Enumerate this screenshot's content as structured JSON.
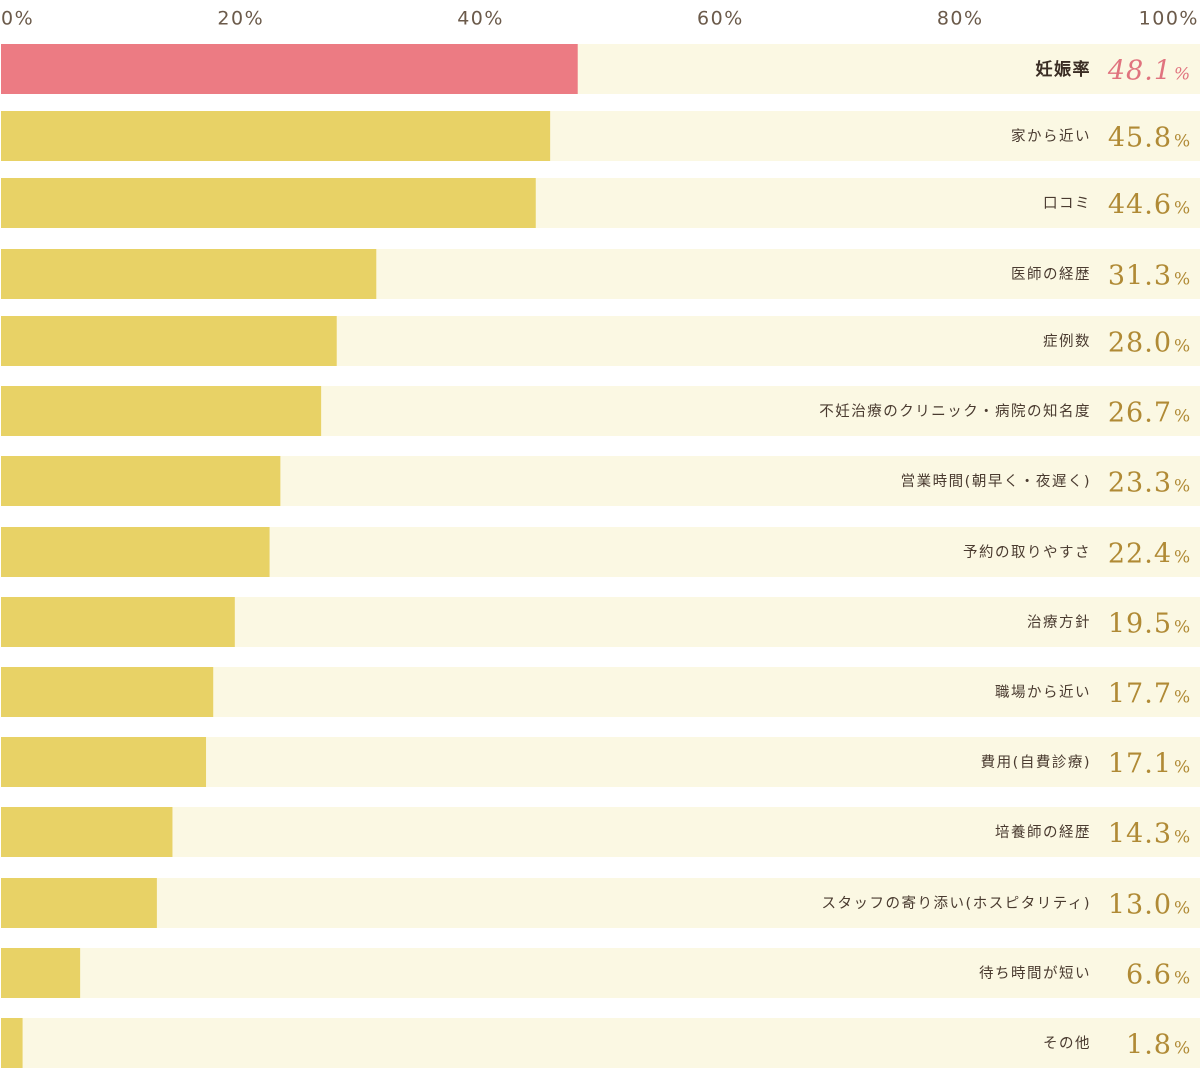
{
  "chart_data": {
    "type": "bar",
    "orientation": "horizontal",
    "xlim": [
      0,
      100
    ],
    "x_ticks": [
      "0%",
      "20%",
      "40%",
      "60%",
      "80%",
      "100%"
    ],
    "unit": "%",
    "categories": [
      "妊娠率",
      "家から近い",
      "口コミ",
      "医師の経歴",
      "症例数",
      "不妊治療のクリニック・病院の知名度",
      "営業時間(朝早く・夜遅く)",
      "予約の取りやすさ",
      "治療方針",
      "職場から近い",
      "費用(自費診療)",
      "培養師の経歴",
      "スタッフの寄り添い(ホスピタリティ)",
      "待ち時間が短い",
      "その他"
    ],
    "values": [
      48.1,
      45.8,
      44.6,
      31.3,
      28.0,
      26.7,
      23.3,
      22.4,
      19.5,
      17.7,
      17.1,
      14.3,
      13.0,
      6.6,
      1.8
    ],
    "value_labels": [
      "48.1",
      "45.8",
      "44.6",
      "31.3",
      "28.0",
      "26.7",
      "23.3",
      "22.4",
      "19.5",
      "17.7",
      "17.1",
      "14.3",
      "13.0",
      "6.6",
      "1.8"
    ],
    "highlight_index": 0,
    "grid": false,
    "legend": "none"
  },
  "colors": {
    "highlight_bar": "#ec7b83",
    "bar": "#e8d266",
    "track": "#fbf8e3",
    "highlight_value": "#e0737e",
    "value": "#b08a35",
    "tick_text": "#6b5a4a"
  }
}
